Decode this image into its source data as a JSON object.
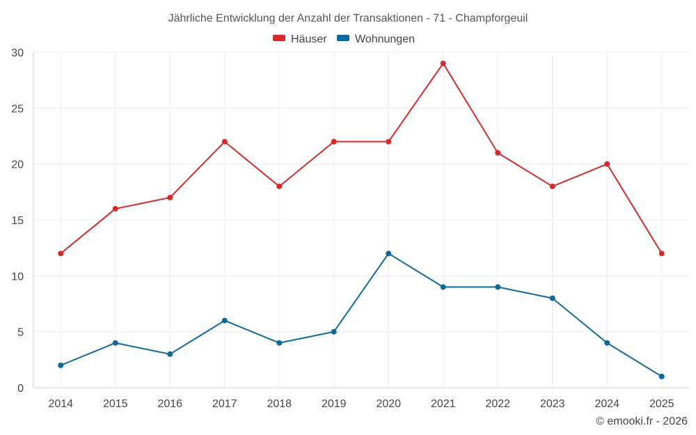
{
  "chart_data": {
    "type": "line",
    "title": "Jährliche Entwicklung der Anzahl der Transaktionen - 71 - Champforgeuil",
    "categories": [
      "2014",
      "2015",
      "2016",
      "2017",
      "2018",
      "2019",
      "2020",
      "2021",
      "2022",
      "2023",
      "2024",
      "2025"
    ],
    "series": [
      {
        "name": "Häuser",
        "color": "#d42a2a",
        "values": [
          12,
          16,
          17,
          22,
          18,
          22,
          22,
          29,
          21,
          18,
          20,
          12
        ]
      },
      {
        "name": "Wohnungen",
        "color": "#0e6a9e",
        "values": [
          2,
          4,
          3,
          6,
          4,
          5,
          12,
          9,
          9,
          8,
          4,
          1
        ]
      }
    ],
    "y_ticks": [
      "0",
      "5",
      "10",
      "15",
      "20",
      "25",
      "30"
    ],
    "ylim": [
      0,
      30
    ],
    "xlabel": "",
    "ylabel": "",
    "grid": true,
    "legend": "top-center",
    "credit": "© emooki.fr - 2026"
  }
}
